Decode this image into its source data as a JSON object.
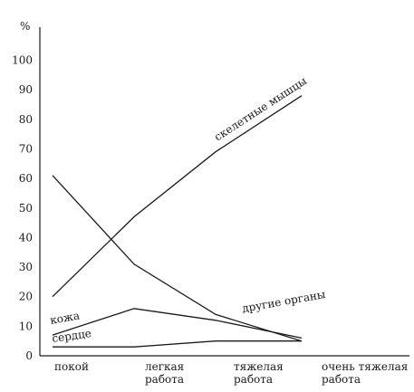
{
  "chart_data": {
    "type": "line",
    "ylabel": "%",
    "ylim": [
      0,
      100
    ],
    "yticks": [
      0,
      10,
      20,
      30,
      40,
      50,
      60,
      70,
      80,
      90,
      100
    ],
    "grid": false,
    "categories": [
      {
        "lines": [
          "покой"
        ]
      },
      {
        "lines": [
          "легкая",
          "работа"
        ]
      },
      {
        "lines": [
          "тяжелая",
          "работа"
        ]
      },
      {
        "lines": [
          "очень тяжелая",
          "работа"
        ]
      }
    ],
    "series": [
      {
        "name": "скелетные мышцы",
        "values": [
          20,
          47,
          69,
          88
        ]
      },
      {
        "name": "кожа",
        "values": [
          61,
          31,
          14,
          5
        ]
      },
      {
        "name": "другие органы",
        "values": [
          7,
          16,
          12,
          6
        ]
      },
      {
        "name": "сердце",
        "values": [
          3,
          3,
          5,
          5
        ]
      }
    ]
  }
}
